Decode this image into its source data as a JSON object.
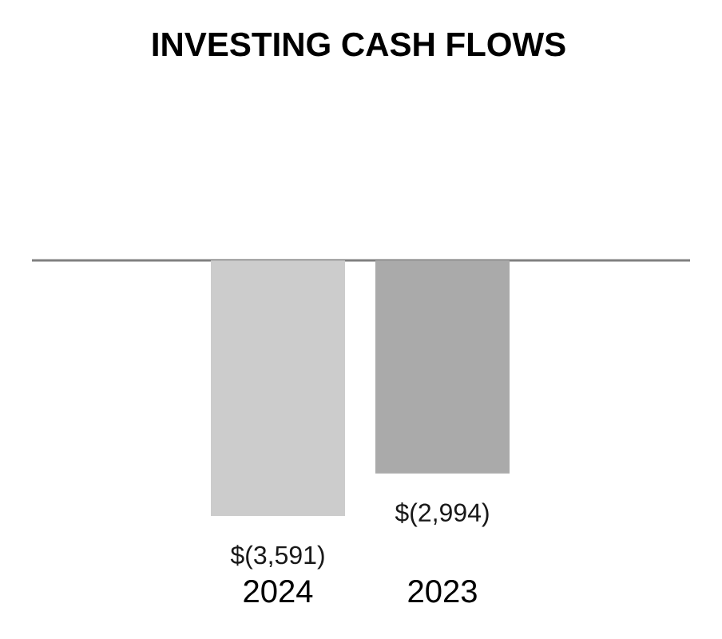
{
  "chart_data": {
    "type": "bar",
    "title": "INVESTING CASH FLOWS",
    "categories": [
      "2024",
      "2023"
    ],
    "values": [
      -3591,
      -2994
    ],
    "colors": [
      "#cccccc",
      "#aaaaaa"
    ],
    "value_labels": [
      "$(3,591)",
      "$(2,994)"
    ]
  }
}
